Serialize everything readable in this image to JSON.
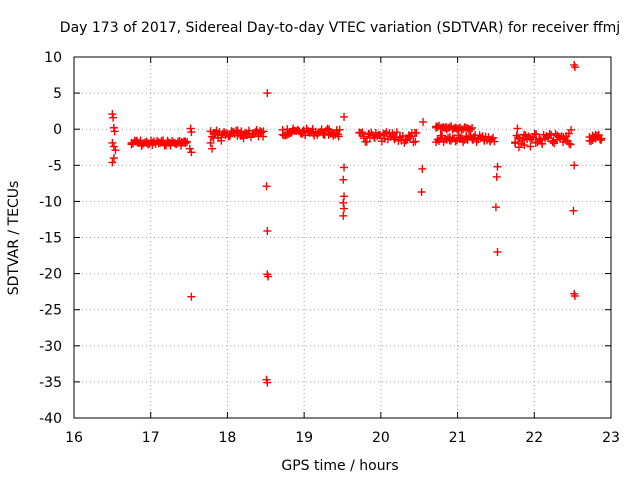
{
  "chart_data": {
    "type": "scatter",
    "title": "Day 173 of 2017, Sidereal Day-to-day VTEC variation (SDTVAR) for receiver ffmj",
    "xlabel": "GPS time / hours",
    "ylabel": "SDTVAR / TECUs",
    "xlim": [
      16,
      23
    ],
    "ylim": [
      -40,
      10
    ],
    "xticks": [
      16,
      17,
      18,
      19,
      20,
      21,
      22,
      23
    ],
    "yticks": [
      10,
      5,
      0,
      -5,
      -10,
      -15,
      -20,
      -25,
      -30,
      -35,
      -40
    ],
    "grid": true,
    "marker": "plus",
    "series": [
      {
        "name": "SDTVAR",
        "color": "#ff0000",
        "points": [
          [
            16.5,
            2.1
          ],
          [
            16.51,
            1.6
          ],
          [
            16.52,
            0.2
          ],
          [
            16.53,
            -0.3
          ],
          [
            16.5,
            -1.9
          ],
          [
            16.52,
            -2.4
          ],
          [
            16.54,
            -2.9
          ],
          [
            16.52,
            -4.0
          ],
          [
            16.5,
            -4.6
          ],
          [
            16.75,
            -2.1
          ],
          [
            16.82,
            -1.6
          ],
          [
            16.88,
            -2.3
          ],
          [
            16.95,
            -1.9
          ],
          [
            17.02,
            -2.2
          ],
          [
            17.1,
            -1.8
          ],
          [
            17.18,
            -2.1
          ],
          [
            17.25,
            -1.9
          ],
          [
            17.32,
            -2.0
          ],
          [
            17.4,
            -1.8
          ],
          [
            17.45,
            -1.7
          ],
          [
            17.52,
            0.1
          ],
          [
            17.53,
            -0.4
          ],
          [
            17.51,
            -2.7
          ],
          [
            17.53,
            -3.2
          ],
          [
            17.53,
            -23.2
          ],
          [
            17.78,
            -1.9
          ],
          [
            17.8,
            -2.7
          ],
          [
            17.82,
            -1.2
          ],
          [
            17.87,
            -0.8
          ],
          [
            17.92,
            -1.6
          ],
          [
            17.97,
            -0.6
          ],
          [
            18.02,
            -1.0
          ],
          [
            18.08,
            -0.4
          ],
          [
            18.13,
            -0.9
          ],
          [
            18.18,
            -0.3
          ],
          [
            18.23,
            -0.7
          ],
          [
            18.28,
            -0.2
          ],
          [
            18.33,
            -0.6
          ],
          [
            18.38,
            -0.1
          ],
          [
            18.43,
            -0.4
          ],
          [
            18.47,
            -0.3
          ],
          [
            18.52,
            5.0
          ],
          [
            18.51,
            -7.9
          ],
          [
            18.52,
            -14.1
          ],
          [
            18.52,
            -20.1
          ],
          [
            18.53,
            -20.4
          ],
          [
            18.51,
            -34.7
          ],
          [
            18.52,
            -35.1
          ],
          [
            18.72,
            -0.1
          ],
          [
            18.78,
            0.0
          ],
          [
            18.85,
            -0.2
          ],
          [
            18.92,
            -0.1
          ],
          [
            18.98,
            -0.3
          ],
          [
            19.05,
            -0.4
          ],
          [
            19.12,
            -0.6
          ],
          [
            19.18,
            -0.5
          ],
          [
            19.25,
            -0.7
          ],
          [
            19.32,
            -0.8
          ],
          [
            19.38,
            -0.9
          ],
          [
            19.45,
            -1.0
          ],
          [
            19.52,
            1.7
          ],
          [
            19.52,
            -5.3
          ],
          [
            19.51,
            -7.0
          ],
          [
            19.52,
            -9.3
          ],
          [
            19.51,
            -10.2
          ],
          [
            19.52,
            -11.0
          ],
          [
            19.51,
            -12.0
          ],
          [
            19.72,
            -0.5
          ],
          [
            19.78,
            -1.0
          ],
          [
            19.85,
            -0.7
          ],
          [
            19.92,
            -1.2
          ],
          [
            19.98,
            -0.8
          ],
          [
            20.05,
            -1.3
          ],
          [
            20.12,
            -1.0
          ],
          [
            20.18,
            -1.4
          ],
          [
            20.25,
            -1.1
          ],
          [
            20.32,
            -1.5
          ],
          [
            20.38,
            -1.2
          ],
          [
            20.45,
            -1.7
          ],
          [
            20.55,
            1.0
          ],
          [
            20.54,
            -5.5
          ],
          [
            20.53,
            -8.7
          ],
          [
            20.72,
            0.2
          ],
          [
            20.78,
            -0.9
          ],
          [
            20.85,
            0.3
          ],
          [
            20.9,
            -1.1
          ],
          [
            20.98,
            0.2
          ],
          [
            21.05,
            -1.3
          ],
          [
            21.12,
            -1.2
          ],
          [
            21.2,
            -1.5
          ],
          [
            21.27,
            -1.4
          ],
          [
            21.35,
            -1.6
          ],
          [
            21.42,
            -1.5
          ],
          [
            21.48,
            -1.7
          ],
          [
            21.52,
            -5.2
          ],
          [
            21.51,
            -6.6
          ],
          [
            21.5,
            -10.8
          ],
          [
            21.52,
            -17.0
          ],
          [
            21.75,
            -1.8
          ],
          [
            21.8,
            -2.5
          ],
          [
            21.78,
            0.1
          ],
          [
            21.87,
            -2.2
          ],
          [
            21.95,
            -2.4
          ],
          [
            22.02,
            -1.9
          ],
          [
            22.1,
            -2.0
          ],
          [
            22.18,
            -1.2
          ],
          [
            22.25,
            -1.6
          ],
          [
            22.3,
            -0.9
          ],
          [
            22.38,
            -1.1
          ],
          [
            22.45,
            -0.6
          ],
          [
            22.48,
            -0.1
          ],
          [
            22.52,
            8.9
          ],
          [
            22.53,
            8.6
          ],
          [
            22.52,
            -5.0
          ],
          [
            22.51,
            -11.3
          ],
          [
            22.52,
            -22.8
          ],
          [
            22.53,
            -23.1
          ],
          [
            22.72,
            -1.6
          ],
          [
            22.76,
            -0.9
          ],
          [
            22.8,
            -1.3
          ],
          [
            22.84,
            -0.8
          ],
          [
            22.87,
            -1.5
          ]
        ],
        "bands": [
          {
            "x_start": 16.75,
            "x_end": 17.48,
            "y_center": -1.9,
            "half_width": 0.4
          },
          {
            "x_start": 17.78,
            "x_end": 18.48,
            "y_center": -0.7,
            "half_width": 0.6
          },
          {
            "x_start": 18.72,
            "x_end": 19.48,
            "y_center": -0.4,
            "half_width": 0.5
          },
          {
            "x_start": 19.72,
            "x_end": 20.48,
            "y_center": -1.2,
            "half_width": 0.8
          },
          {
            "x_start": 20.72,
            "x_end": 21.2,
            "y_center": 0.2,
            "half_width": 0.3
          },
          {
            "x_start": 20.72,
            "x_end": 21.48,
            "y_center": -1.3,
            "half_width": 0.5
          },
          {
            "x_start": 21.75,
            "x_end": 22.48,
            "y_center": -1.4,
            "half_width": 0.8
          },
          {
            "x_start": 22.72,
            "x_end": 22.88,
            "y_center": -1.2,
            "half_width": 0.5
          }
        ]
      }
    ]
  }
}
